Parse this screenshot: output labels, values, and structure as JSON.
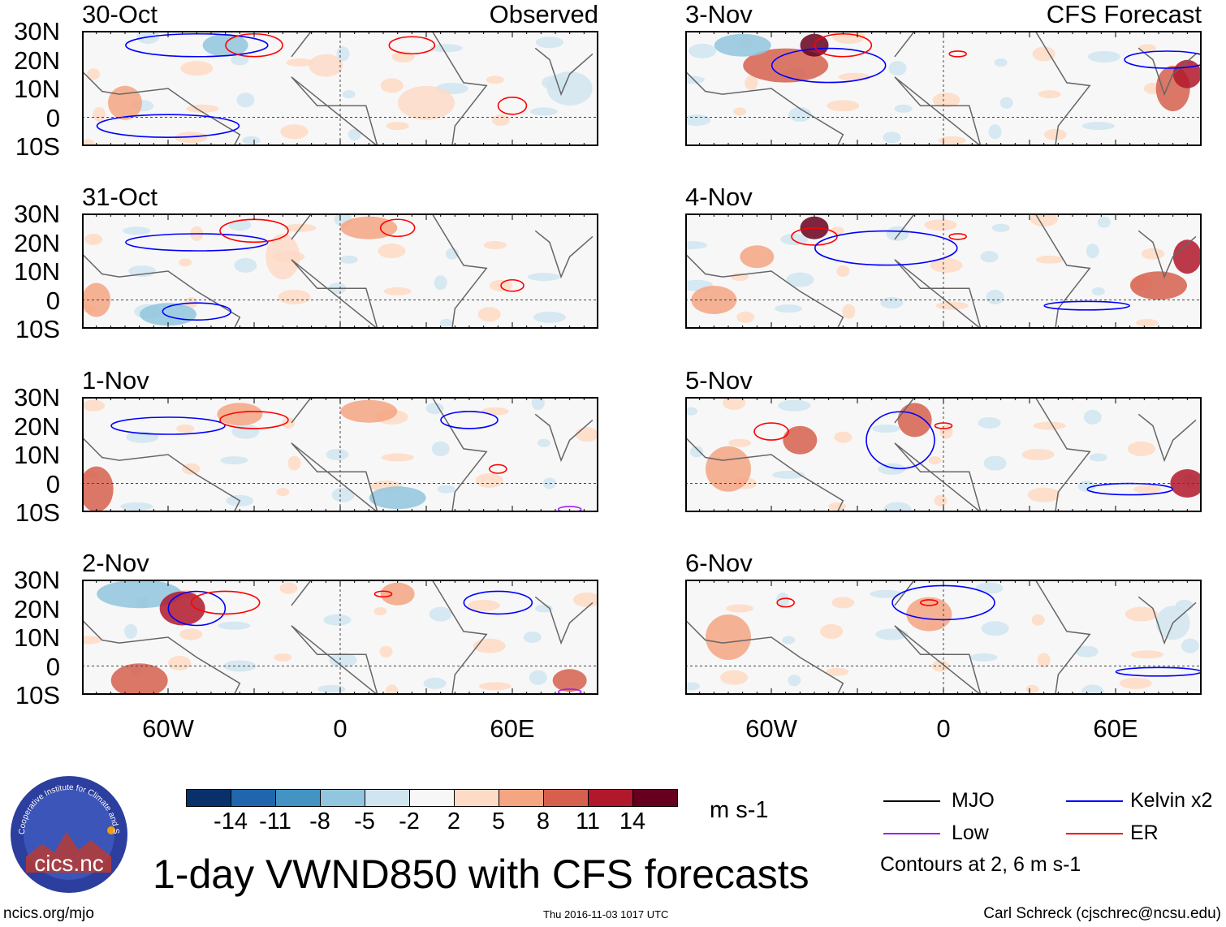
{
  "header": {
    "observed_label": "Observed",
    "forecast_label": "CFS Forecast"
  },
  "axes": {
    "lat_labels": [
      "30N",
      "20N",
      "10N",
      "0",
      "10S"
    ],
    "lon_labels": [
      "60W",
      "0",
      "60E"
    ]
  },
  "colorbar": {
    "colors": [
      "#08306b",
      "#2166ac",
      "#4393c3",
      "#92c5de",
      "#d1e5f0",
      "#f7f7f7",
      "#fddbc7",
      "#f4a582",
      "#d6604d",
      "#b2182b",
      "#67001f"
    ],
    "ticks": [
      "-14",
      "-11",
      "-8",
      "-5",
      "-2",
      "2",
      "5",
      "8",
      "11",
      "14"
    ],
    "units": "m s-1"
  },
  "legend": {
    "items": [
      {
        "label": "MJO",
        "color": "#000000"
      },
      {
        "label": "Kelvin x2",
        "color": "#0000ff"
      },
      {
        "label": "Low",
        "color": "#a020f0"
      },
      {
        "label": "ER",
        "color": "#ff0000"
      }
    ],
    "note": "Contours at 2, 6 m s-1"
  },
  "title": "1-day VWND850 with CFS forecasts",
  "footer": {
    "url": "ncics.org/mjo",
    "timestamp": "Thu 2016-11-03 1017 UTC",
    "credit": "Carl Schreck (cjschrec@ncsu.edu)"
  },
  "logo": {
    "name": "cics.nc",
    "arc_text": "Cooperative Institute for Climate and Satellites"
  },
  "chart_data": {
    "type": "map",
    "lon_range": [
      -90,
      90
    ],
    "lat_range": [
      -10,
      30
    ],
    "panels": [
      {
        "date": "30-Oct",
        "source": "observed",
        "shading": [
          [
            -75,
            5,
            6,
            6,
            7
          ],
          [
            -40,
            25,
            8,
            4,
            3
          ],
          [
            -5,
            18,
            6,
            4,
            6
          ],
          [
            30,
            5,
            10,
            6,
            6
          ],
          [
            80,
            10,
            8,
            6,
            4
          ]
        ],
        "contours": [
          [
            "kelvin",
            -50,
            25,
            25,
            4
          ],
          [
            "er",
            -30,
            25,
            10,
            4
          ],
          [
            "er",
            60,
            4,
            5,
            3
          ],
          [
            "kelvin",
            -60,
            -3,
            25,
            4
          ],
          [
            "er",
            25,
            25,
            8,
            3
          ]
        ]
      },
      {
        "date": "3-Nov",
        "source": "forecast",
        "shading": [
          [
            -55,
            18,
            15,
            6,
            8
          ],
          [
            -45,
            25,
            5,
            4,
            10
          ],
          [
            -70,
            25,
            10,
            4,
            3
          ],
          [
            80,
            10,
            6,
            8,
            8
          ],
          [
            85,
            15,
            5,
            5,
            9
          ]
        ],
        "contours": [
          [
            "kelvin",
            -40,
            18,
            20,
            6
          ],
          [
            "er",
            -35,
            25,
            10,
            4
          ],
          [
            "kelvin",
            78,
            20,
            15,
            3
          ],
          [
            "er",
            5,
            22,
            3,
            1
          ]
        ]
      },
      {
        "date": "31-Oct",
        "source": "observed",
        "shading": [
          [
            -85,
            0,
            5,
            6,
            7
          ],
          [
            -20,
            15,
            6,
            8,
            6
          ],
          [
            10,
            25,
            10,
            4,
            7
          ],
          [
            -60,
            -5,
            10,
            4,
            3
          ]
        ],
        "contours": [
          [
            "kelvin",
            -50,
            20,
            25,
            3
          ],
          [
            "er",
            -30,
            24,
            12,
            4
          ],
          [
            "er",
            60,
            5,
            4,
            2
          ],
          [
            "kelvin",
            -50,
            -4,
            12,
            3
          ],
          [
            "er",
            20,
            25,
            6,
            3
          ]
        ]
      },
      {
        "date": "4-Nov",
        "source": "forecast",
        "shading": [
          [
            -45,
            25,
            5,
            4,
            10
          ],
          [
            -65,
            15,
            6,
            4,
            7
          ],
          [
            85,
            15,
            5,
            6,
            9
          ],
          [
            75,
            5,
            10,
            5,
            8
          ],
          [
            -80,
            0,
            8,
            5,
            7
          ]
        ],
        "contours": [
          [
            "er",
            -45,
            22,
            8,
            3
          ],
          [
            "kelvin",
            -20,
            18,
            25,
            6
          ],
          [
            "kelvin",
            50,
            -2,
            15,
            1.5
          ],
          [
            "er",
            5,
            22,
            3,
            1
          ]
        ]
      },
      {
        "date": "1-Nov",
        "source": "observed",
        "shading": [
          [
            -85,
            -2,
            6,
            8,
            8
          ],
          [
            -35,
            24,
            8,
            4,
            7
          ],
          [
            10,
            25,
            10,
            4,
            7
          ],
          [
            20,
            -5,
            10,
            4,
            3
          ]
        ],
        "contours": [
          [
            "kelvin",
            -60,
            20,
            20,
            3
          ],
          [
            "er",
            -30,
            22,
            12,
            3
          ],
          [
            "er",
            55,
            5,
            3,
            1.5
          ],
          [
            "kelvin",
            45,
            22,
            10,
            3
          ],
          [
            "low",
            80,
            -9,
            4,
            1
          ]
        ]
      },
      {
        "date": "5-Nov",
        "source": "forecast",
        "shading": [
          [
            -75,
            5,
            8,
            8,
            7
          ],
          [
            -50,
            15,
            6,
            5,
            8
          ],
          [
            85,
            0,
            6,
            5,
            9
          ],
          [
            -10,
            22,
            6,
            6,
            8
          ]
        ],
        "contours": [
          [
            "er",
            -60,
            18,
            6,
            3
          ],
          [
            "kelvin",
            -15,
            15,
            12,
            10
          ],
          [
            "kelvin",
            65,
            -2,
            15,
            2
          ],
          [
            "er",
            0,
            20,
            3,
            1
          ]
        ]
      },
      {
        "date": "2-Nov",
        "source": "observed",
        "shading": [
          [
            -70,
            25,
            15,
            5,
            3
          ],
          [
            -55,
            20,
            8,
            6,
            9
          ],
          [
            -70,
            -5,
            10,
            6,
            8
          ],
          [
            20,
            25,
            6,
            4,
            7
          ],
          [
            80,
            -5,
            6,
            4,
            8
          ]
        ],
        "contours": [
          [
            "kelvin",
            -50,
            20,
            10,
            6
          ],
          [
            "er",
            -40,
            22,
            12,
            4
          ],
          [
            "er",
            15,
            25,
            3,
            1
          ],
          [
            "kelvin",
            55,
            22,
            12,
            4
          ],
          [
            "low",
            80,
            -9,
            4,
            1
          ]
        ]
      },
      {
        "date": "6-Nov",
        "source": "forecast",
        "shading": [
          [
            -75,
            10,
            8,
            8,
            7
          ],
          [
            -5,
            18,
            8,
            6,
            7
          ],
          [
            80,
            15,
            6,
            6,
            4
          ]
        ],
        "contours": [
          [
            "er",
            -55,
            22,
            3,
            1.5
          ],
          [
            "kelvin",
            0,
            22,
            18,
            6
          ],
          [
            "kelvin",
            75,
            -2,
            15,
            1.5
          ],
          [
            "er",
            -5,
            22,
            3,
            1
          ]
        ]
      }
    ]
  }
}
